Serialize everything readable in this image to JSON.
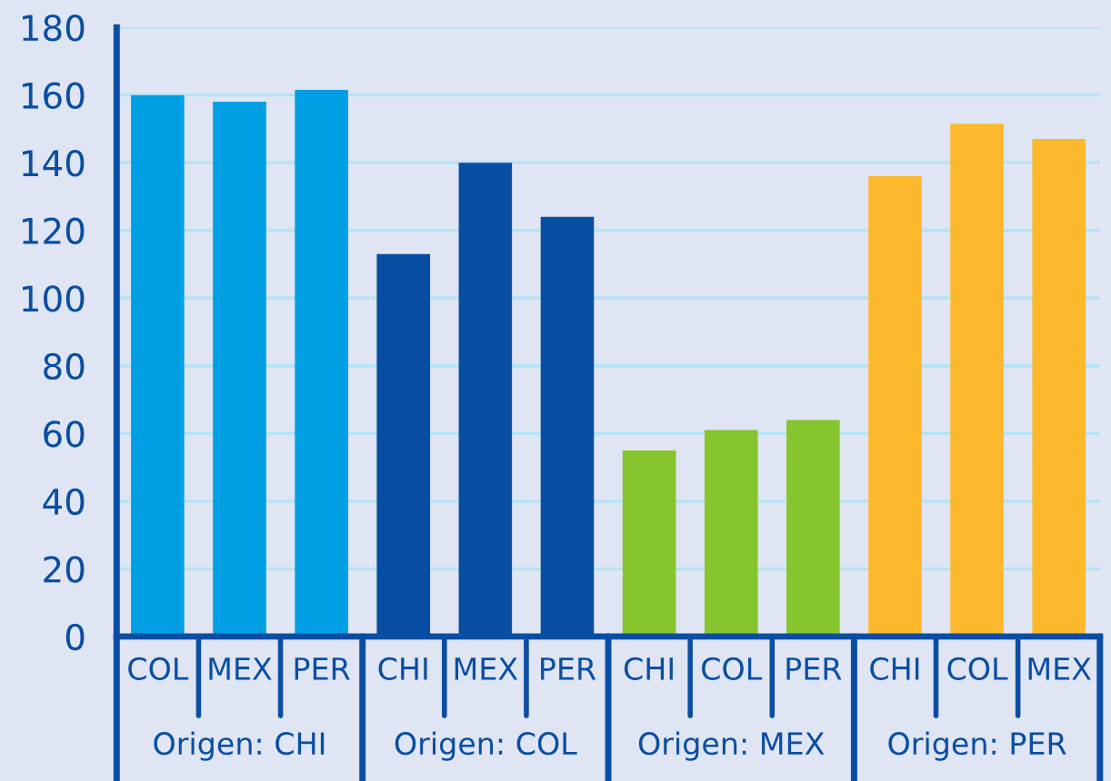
{
  "chart_data": {
    "type": "bar",
    "categories": [
      "COL",
      "MEX",
      "PER",
      "CHI",
      "MEX",
      "PER",
      "CHI",
      "COL",
      "PER",
      "CHI",
      "COL",
      "MEX"
    ],
    "values": [
      160,
      158,
      161.5,
      113,
      140,
      124,
      55,
      61,
      64,
      136,
      151.5,
      147
    ],
    "colors": [
      "#009fe3",
      "#009fe3",
      "#009fe3",
      "#084ea2",
      "#084ea2",
      "#084ea2",
      "#86c52e",
      "#86c52e",
      "#86c52e",
      "#fdb92d",
      "#fdb92d",
      "#fdb92d"
    ],
    "annotations": [
      "Origen: CHI",
      "Origen: COL",
      "Origen: MEX",
      "Origen: PER"
    ],
    "ylim": [
      0,
      180
    ],
    "yticks": [
      0,
      20,
      40,
      60,
      80,
      100,
      120,
      140,
      160,
      180
    ],
    "grid": "y"
  }
}
